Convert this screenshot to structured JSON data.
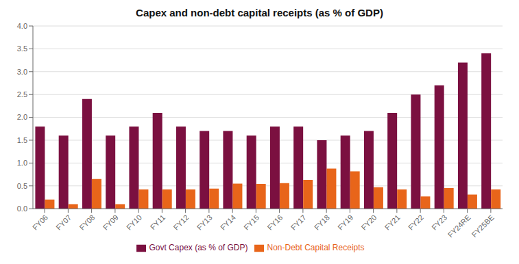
{
  "chart_data": {
    "type": "bar",
    "title": "Capex and non-debt capital receipts (as % of GDP)",
    "categories": [
      "FY06",
      "FY07",
      "FY08",
      "FY09",
      "FY10",
      "FY11",
      "FY12",
      "FY13",
      "FY14",
      "FY15",
      "FY16",
      "FY17",
      "FY18",
      "FY19",
      "FY20",
      "FY21",
      "FY22",
      "FY23",
      "FY24RE",
      "FY25BE"
    ],
    "series": [
      {
        "name": "Govt Capex (as % of GDP)",
        "color": "#7B1040",
        "values": [
          1.8,
          1.6,
          2.4,
          1.6,
          1.8,
          2.1,
          1.8,
          1.7,
          1.7,
          1.6,
          1.8,
          1.8,
          1.5,
          1.6,
          1.7,
          2.1,
          2.5,
          2.7,
          3.2,
          3.4
        ]
      },
      {
        "name": "Non-Debt Capital Receipts",
        "color": "#E8651A",
        "values": [
          0.2,
          0.1,
          0.65,
          0.1,
          0.42,
          0.42,
          0.42,
          0.44,
          0.55,
          0.54,
          0.56,
          0.63,
          0.88,
          0.82,
          0.47,
          0.42,
          0.27,
          0.45,
          0.31,
          0.42
        ]
      }
    ],
    "ylim": [
      0,
      4.0
    ],
    "yticks": [
      {
        "value": 0,
        "label": "0.0"
      },
      0.5,
      {
        "value": 1,
        "label": "1.0"
      },
      1.5,
      {
        "value": 2,
        "label": "2.0"
      },
      2.5,
      {
        "value": 3,
        "label": "3.0"
      },
      3.5,
      {
        "value": 4,
        "label": "4.0"
      }
    ],
    "grid": true,
    "legend": "bottom"
  }
}
